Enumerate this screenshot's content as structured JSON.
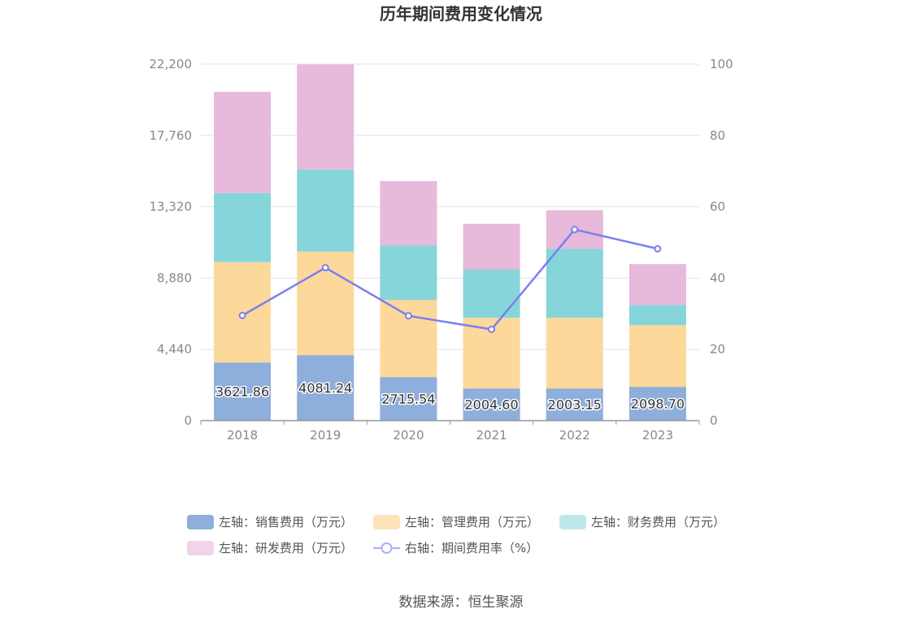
{
  "chart_data": {
    "type": "bar",
    "title": "历年期间费用变化情况",
    "categories": [
      "2018",
      "2019",
      "2020",
      "2021",
      "2022",
      "2023"
    ],
    "left_axis": {
      "ylim": [
        0,
        22200
      ],
      "ticks": [
        "0",
        "4,440",
        "8,880",
        "13,320",
        "17,760",
        "22,200"
      ]
    },
    "right_axis": {
      "ylim": [
        0,
        100
      ],
      "ticks": [
        "0",
        "20",
        "40",
        "60",
        "80",
        "100"
      ]
    },
    "series": [
      {
        "name": "左轴：销售费用（万元）",
        "axis": "left",
        "type": "bar",
        "color": "#8eaedb",
        "values": [
          3621.86,
          4081.24,
          2715.54,
          2004.6,
          2003.15,
          2098.7
        ],
        "labels": [
          "3621.86",
          "4081.24",
          "2715.54",
          "2004.60",
          "2003.15",
          "2098.70"
        ]
      },
      {
        "name": "左轴：管理费用（万元）",
        "axis": "left",
        "type": "bar",
        "color": "#fdd89b",
        "values": [
          6250,
          6450,
          4800,
          4400,
          4400,
          3850
        ]
      },
      {
        "name": "左轴：财务费用（万元）",
        "axis": "left",
        "type": "bar",
        "color": "#86d5da",
        "values": [
          4300,
          5100,
          3400,
          3000,
          4300,
          1250
        ]
      },
      {
        "name": "左轴：研发费用（万元）",
        "axis": "left",
        "type": "bar",
        "color": "#e7b9da",
        "values": [
          6300,
          6550,
          4000,
          2850,
          2400,
          2550
        ]
      },
      {
        "name": "右轴：期间费用率（%）",
        "axis": "right",
        "type": "line",
        "color": "#7b7ff0",
        "values": [
          29.5,
          42.9,
          29.4,
          25.6,
          53.6,
          48.2
        ]
      }
    ],
    "grid": true,
    "legend_position": "bottom"
  },
  "source": "数据来源：恒生聚源"
}
